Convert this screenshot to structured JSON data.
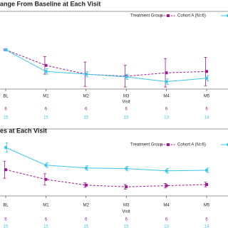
{
  "chart_data": [
    {
      "type": "line",
      "title": "ange From Baseline at Each Visit",
      "legend_title": "Treatment Group",
      "x_label": "Visit",
      "categories": [
        "BL",
        "M1",
        "M2",
        "M3",
        "M4",
        "M5"
      ],
      "ylim": [
        0,
        100
      ],
      "series": [
        {
          "name": "Cohort A (N=6)",
          "color": "#9c1a8f",
          "values": [
            58,
            35,
            22,
            19,
            24,
            26
          ],
          "errors": [
            1,
            13,
            18,
            16,
            21,
            21
          ],
          "n": [
            6,
            6,
            6,
            6,
            6,
            6
          ]
        },
        {
          "color": "#3ec6e8",
          "values": [
            58,
            26,
            22,
            18,
            11,
            16
          ],
          "errors": [
            1,
            4,
            4,
            4,
            4,
            4
          ],
          "n": [
            15,
            15,
            15,
            15,
            13,
            14
          ]
        }
      ]
    },
    {
      "type": "line",
      "title": "es at Each Visit",
      "legend_title": "Treatment Group",
      "x_label": "Visit",
      "categories": [
        "BL",
        "M1",
        "M2",
        "M3",
        "M4",
        "M5"
      ],
      "ylim": [
        0,
        100
      ],
      "series": [
        {
          "name": "Cohort A (N=6)",
          "color": "#9c1a8f",
          "values": [
            46,
            29,
            19,
            16,
            18,
            20
          ],
          "errors": [
            15,
            10,
            4,
            4,
            4,
            4
          ],
          "n": [
            6,
            6,
            6,
            6,
            6,
            6
          ]
        },
        {
          "color": "#3ec6e8",
          "values": [
            85,
            54,
            49,
            48,
            44,
            45
          ],
          "errors": [
            8,
            4,
            4,
            4,
            4,
            4
          ],
          "n": [
            15,
            15,
            15,
            15,
            13,
            14
          ]
        }
      ]
    }
  ]
}
